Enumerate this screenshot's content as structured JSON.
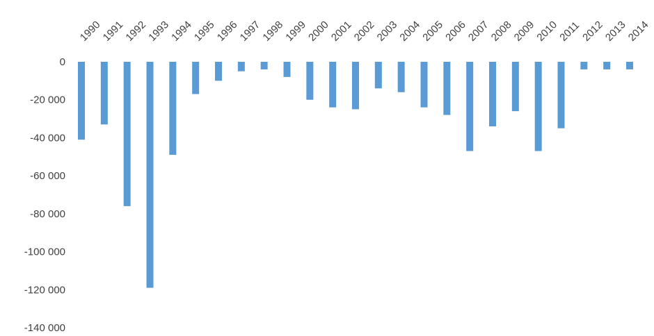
{
  "chart_data": {
    "type": "bar",
    "title": "",
    "xlabel": "",
    "ylabel": "",
    "categories": [
      "1990",
      "1991",
      "1992",
      "1993",
      "1994",
      "1995",
      "1996",
      "1997",
      "1998",
      "1999",
      "2000",
      "2001",
      "2002",
      "2003",
      "2004",
      "2005",
      "2006",
      "2007",
      "2008",
      "2009",
      "2010",
      "2011",
      "2012",
      "2013",
      "2014"
    ],
    "values": [
      -41000,
      -33000,
      -76000,
      -119000,
      -49000,
      -17000,
      -10000,
      -5000,
      -4000,
      -8000,
      -20000,
      -24000,
      -25000,
      -14000,
      -16000,
      -24000,
      -28000,
      -47000,
      -34000,
      -26000,
      -47000,
      -35000,
      -4000,
      -4000,
      -4000
    ],
    "ylim": [
      -140000,
      0
    ],
    "yticks": [
      0,
      -20000,
      -40000,
      -60000,
      -80000,
      -100000,
      -120000,
      -140000
    ],
    "ytick_labels": [
      "0",
      "-20 000",
      "-40 000",
      "-60 000",
      "-80 000",
      "-100 000",
      "-120 000",
      "-140 000"
    ],
    "grid": false,
    "legend": "none",
    "bar_color": "#5b9bd5",
    "text_color": "#404040"
  }
}
